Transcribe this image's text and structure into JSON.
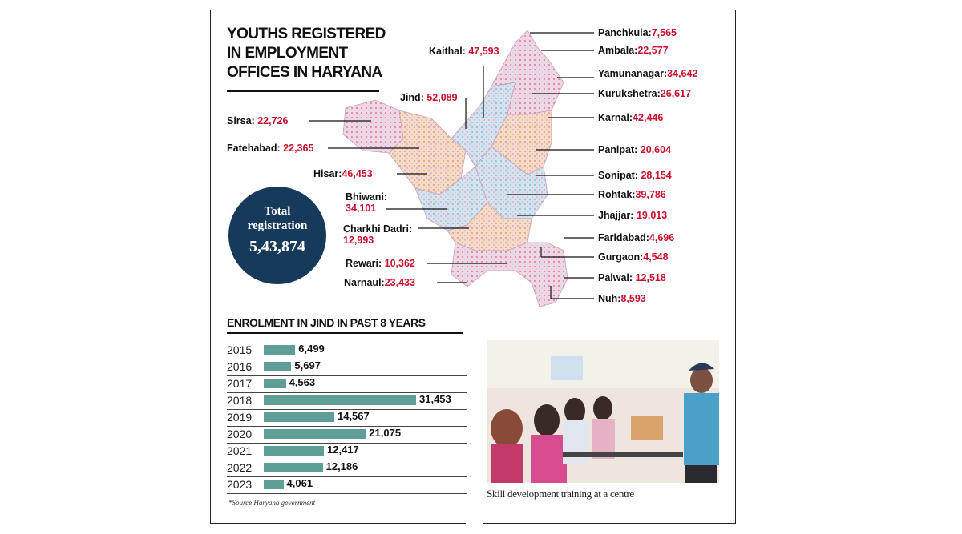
{
  "title": {
    "line1": "YOUTHS REGISTERED",
    "line2": "IN EMPLOYMENT",
    "line3": "OFFICES IN HARYANA"
  },
  "total": {
    "label1": "Total",
    "label2": "registration",
    "value": "5,43,874"
  },
  "districts": {
    "panchkula": {
      "name": "Panchkula:",
      "value": "7,565"
    },
    "ambala": {
      "name": "Ambala:",
      "value": "22,577"
    },
    "yamunanagar": {
      "name": "Yamunanagar:",
      "value": "34,642"
    },
    "kurukshetra": {
      "name": "Kurukshetra:",
      "value": "26,617"
    },
    "karnal": {
      "name": "Karnal:",
      "value": "42,446"
    },
    "panipat": {
      "name": "Panipat:",
      "value": "20,604"
    },
    "sonipat": {
      "name": "Sonipat:",
      "value": "28,154"
    },
    "rohtak": {
      "name": "Rohtak:",
      "value": "39,786"
    },
    "jhajjar": {
      "name": "Jhajjar:",
      "value": "19,013"
    },
    "faridabad": {
      "name": "Faridabad:",
      "value": "4,696"
    },
    "gurgaon": {
      "name": "Gurgaon:",
      "value": "4,548"
    },
    "palwal": {
      "name": "Palwal:",
      "value": "12,518"
    },
    "nuh": {
      "name": "Nuh:",
      "value": "8,593"
    },
    "kaithal": {
      "name": "Kaithal:",
      "value": "47,593"
    },
    "jind": {
      "name": "Jind:",
      "value": "52,089"
    },
    "sirsa": {
      "name": "Sirsa:",
      "value": "22,726"
    },
    "fatehabad": {
      "name": "Fatehabad:",
      "value": "22,365"
    },
    "hisar": {
      "name": "Hisar:",
      "value": "46,453"
    },
    "bhiwani": {
      "name": "Bhiwani:",
      "value": "34,101"
    },
    "charkhidadri": {
      "name": "Charkhi Dadri:",
      "value": "12,993"
    },
    "rewari": {
      "name": "Rewari:",
      "value": "10,362"
    },
    "narnaul": {
      "name": "Narnaul:",
      "value": "23,433"
    }
  },
  "chart_data": {
    "type": "bar",
    "orientation": "horizontal",
    "title": "ENROLMENT IN JIND IN PAST 8 YEARS",
    "categories": [
      "2015",
      "2016",
      "2017",
      "2018",
      "2019",
      "2020",
      "2021",
      "2022",
      "2023"
    ],
    "values": [
      6499,
      5697,
      4563,
      31453,
      14567,
      21075,
      12417,
      12186,
      4061
    ],
    "value_labels": [
      "6,499",
      "5,697",
      "4,563",
      "31,453",
      "14,567",
      "21,075",
      "12,417",
      "12,186",
      "4,061"
    ],
    "bar_color": "#5f9e96",
    "xlim": [
      0,
      31453
    ]
  },
  "source": "*Source Haryana government",
  "caption": "Skill development training at a centre",
  "colors": {
    "value_red": "#c8102e",
    "circle_navy": "#173a5a"
  }
}
